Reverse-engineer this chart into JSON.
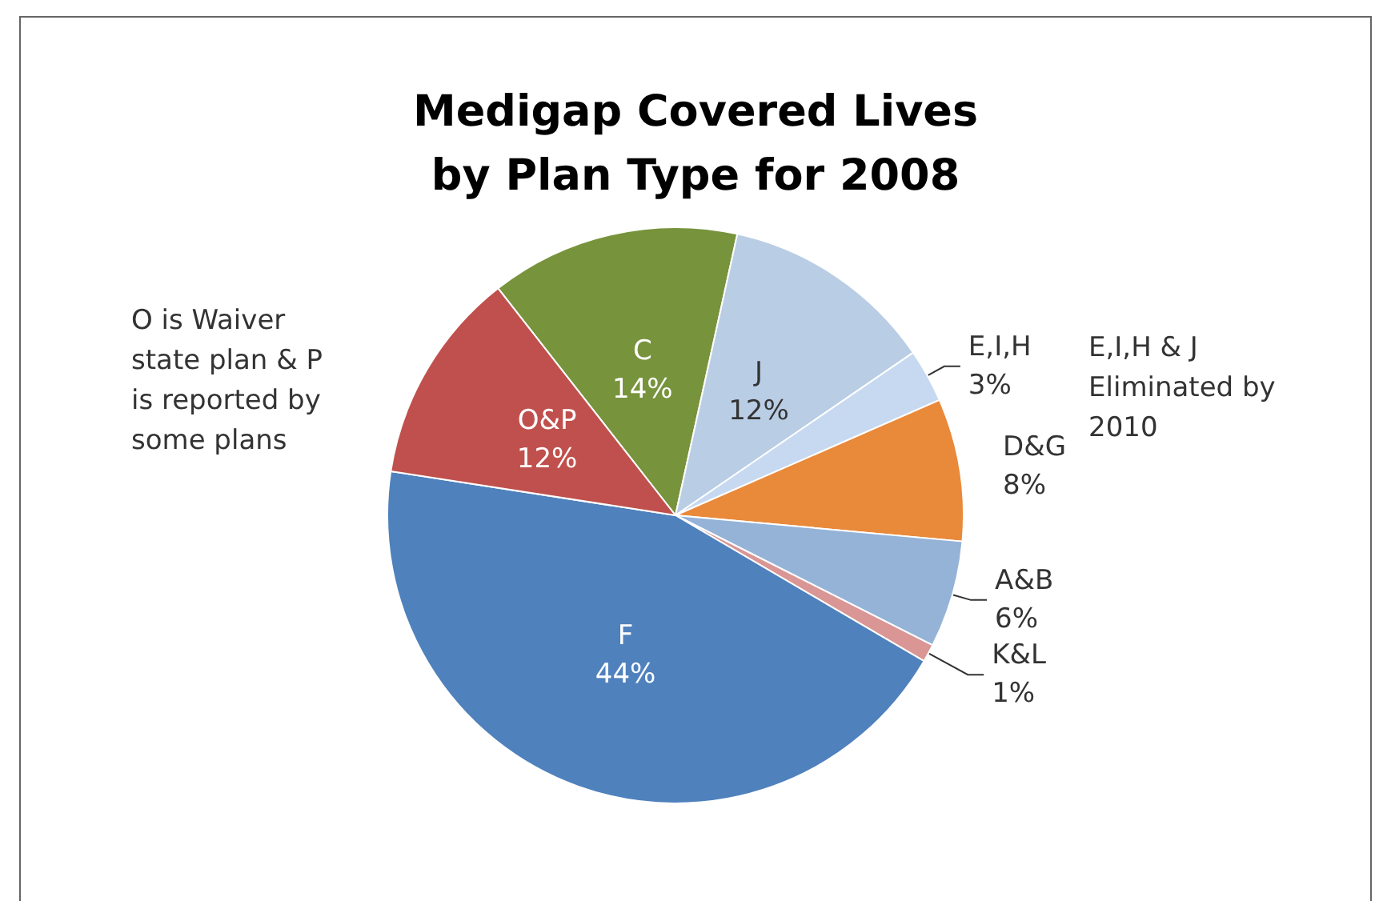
{
  "chart_data": {
    "type": "pie",
    "title": "Medigap Covered Lives\nby Plan Type for 2008",
    "categories": [
      "C",
      "J",
      "E,I,H",
      "D&G",
      "A&B",
      "K&L",
      "F",
      "O&P"
    ],
    "values": [
      14,
      12,
      3,
      8,
      6,
      1,
      44,
      12
    ],
    "value_labels": [
      "14%",
      "12%",
      "3%",
      "8%",
      "6%",
      "1%",
      "44%",
      "12%"
    ],
    "colors": [
      "#77933c",
      "#b9cde5",
      "#c6d9f1",
      "#e9893a",
      "#95b3d7",
      "#d99694",
      "#4f81bd",
      "#c0504d"
    ],
    "annotations": [
      "O is Waiver\nstate plan & P\nis reported by\nsome plans",
      "E,I,H & J\nEliminated by\n2010"
    ]
  }
}
